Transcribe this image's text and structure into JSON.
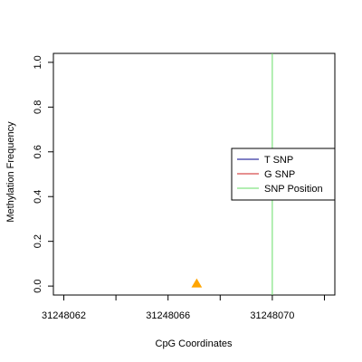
{
  "chart_data": {
    "type": "scatter",
    "xlabel": "CpG Coordinates",
    "ylabel": "Methylation Frequency",
    "xlim": [
      31248061.6,
      31248072.4
    ],
    "ylim": [
      -0.04,
      1.04
    ],
    "x_ticks": [
      31248062,
      31248064,
      31248066,
      31248068,
      31248070,
      31248072
    ],
    "x_tick_labels": [
      "31248062",
      "",
      "31248066",
      "",
      "31248070",
      ""
    ],
    "y_ticks": [
      0,
      0.2,
      0.4,
      0.6,
      0.8,
      1
    ],
    "y_tick_labels": [
      "0.0",
      "0.2",
      "0.4",
      "0.6",
      "0.8",
      "1.0"
    ],
    "points": [
      {
        "x": 31248067.1,
        "y": 0.01,
        "marker": "triangle",
        "color": "#ffa500"
      }
    ],
    "snp_position": {
      "x": 31248070,
      "color": "#66dd66"
    },
    "legend": {
      "placement": "right",
      "entries": [
        {
          "label": "T SNP",
          "color": "#00008b"
        },
        {
          "label": "G SNP",
          "color": "#cc2222"
        },
        {
          "label": "SNP Position",
          "color": "#66dd66"
        }
      ]
    },
    "grid": false
  }
}
